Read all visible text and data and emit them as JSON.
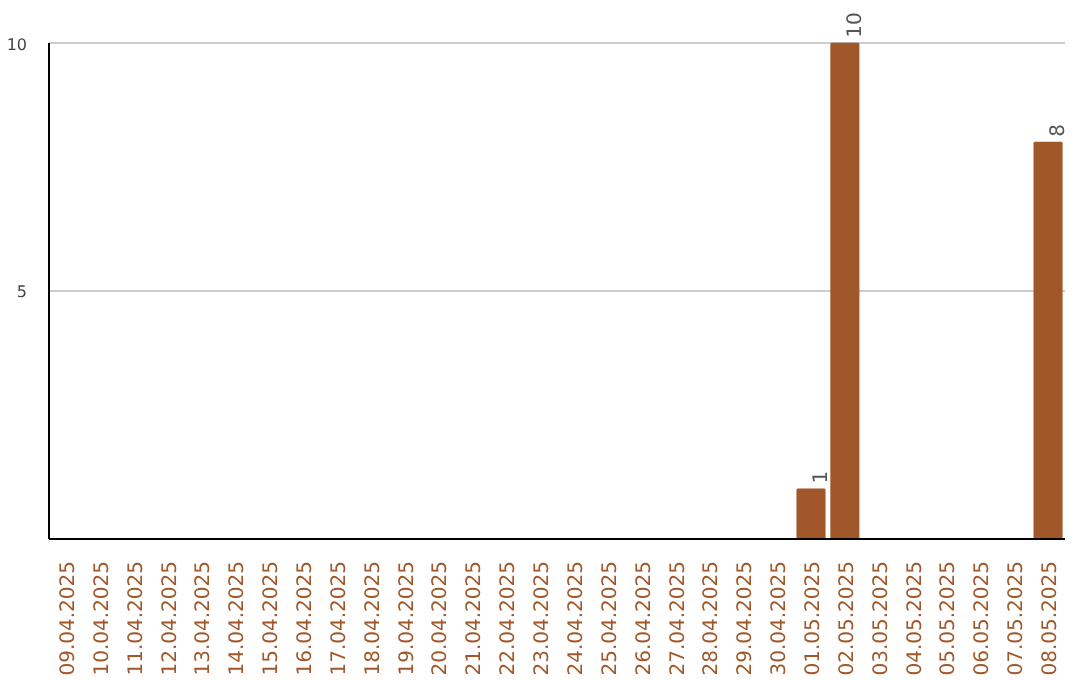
{
  "chart_data": {
    "type": "bar",
    "categories": [
      "09.04.2025",
      "10.04.2025",
      "11.04.2025",
      "12.04.2025",
      "13.04.2025",
      "14.04.2025",
      "15.04.2025",
      "16.04.2025",
      "17.04.2025",
      "18.04.2025",
      "19.04.2025",
      "20.04.2025",
      "21.04.2025",
      "22.04.2025",
      "23.04.2025",
      "24.04.2025",
      "25.04.2025",
      "26.04.2025",
      "27.04.2025",
      "28.04.2025",
      "29.04.2025",
      "30.04.2025",
      "01.05.2025",
      "02.05.2025",
      "03.05.2025",
      "04.05.2025",
      "05.05.2025",
      "06.05.2025",
      "07.05.2025",
      "08.05.2025"
    ],
    "values": [
      0,
      0,
      0,
      0,
      0,
      0,
      0,
      0,
      0,
      0,
      0,
      0,
      0,
      0,
      0,
      0,
      0,
      0,
      0,
      0,
      0,
      0,
      1,
      10,
      0,
      0,
      0,
      0,
      0,
      8
    ],
    "value_labels": [
      null,
      null,
      null,
      null,
      null,
      null,
      null,
      null,
      null,
      null,
      null,
      null,
      null,
      null,
      null,
      null,
      null,
      null,
      null,
      null,
      null,
      null,
      "1",
      "10",
      null,
      null,
      null,
      null,
      null,
      "8"
    ],
    "color": "#a0582a",
    "ylim": [
      0,
      10
    ],
    "yticks": [
      5,
      10
    ],
    "grid": "y"
  }
}
